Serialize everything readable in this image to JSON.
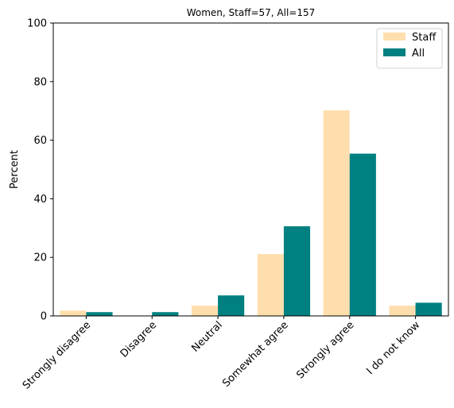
{
  "chart_data": {
    "type": "bar",
    "title": "Women, Staff=57, All=157",
    "xlabel": "",
    "ylabel": "Percent",
    "ylim": [
      0,
      100
    ],
    "yticks": [
      0,
      20,
      40,
      60,
      80,
      100
    ],
    "categories": [
      "Strongly disagree",
      "Disagree",
      "Neutral",
      "Somewhat agree",
      "Strongly agree",
      "I do not know"
    ],
    "series": [
      {
        "name": "Staff",
        "color": "#ffdead",
        "values": [
          1.8,
          0,
          3.5,
          21.1,
          70.2,
          3.5
        ]
      },
      {
        "name": "All",
        "color": "#008080",
        "values": [
          1.3,
          1.3,
          7.0,
          30.6,
          55.4,
          4.5
        ]
      }
    ],
    "legend": {
      "position": "top-right"
    },
    "grid": false
  }
}
